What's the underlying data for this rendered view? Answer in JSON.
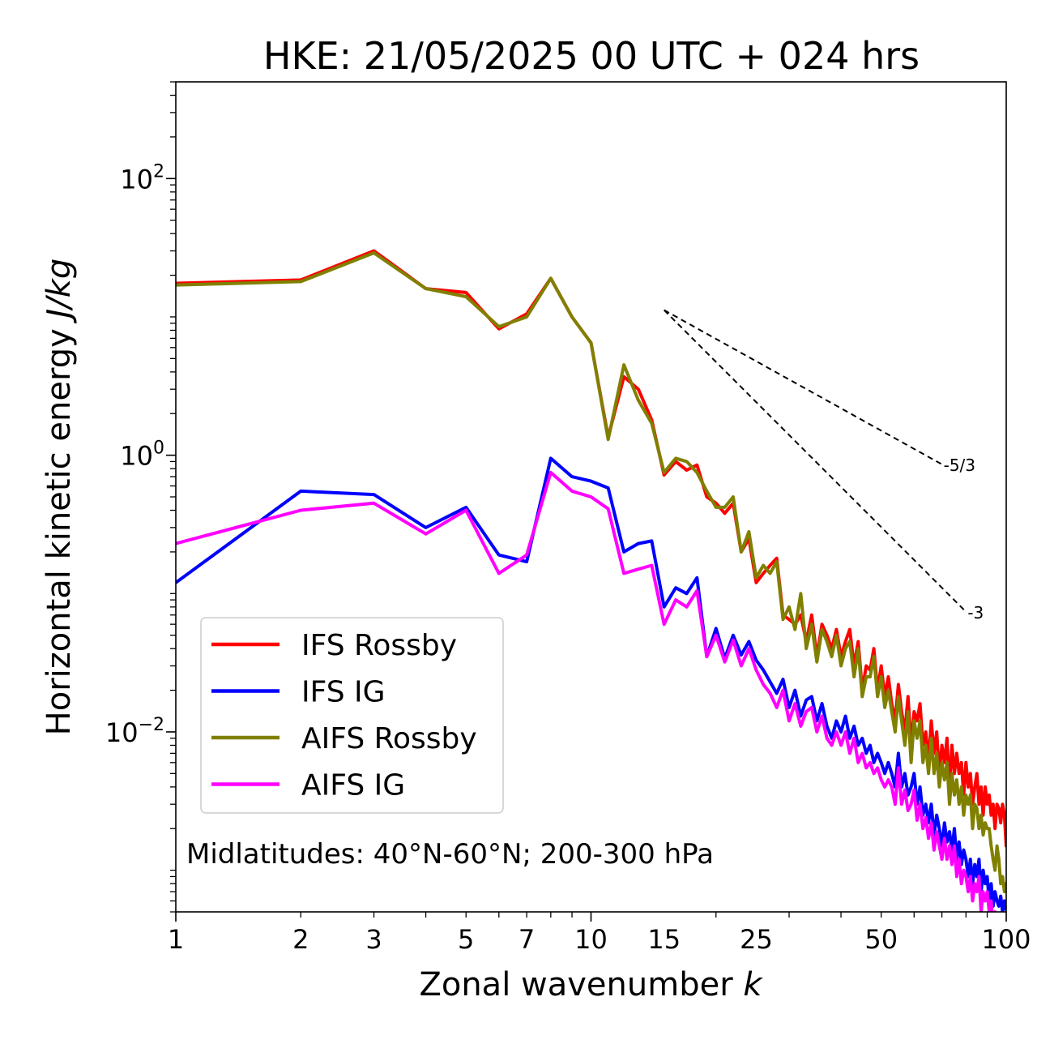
{
  "chart_data": {
    "type": "line",
    "title": "HKE: 21/05/2025 00 UTC + 024 hrs",
    "xlabel_text": "Zonal wavenumber ",
    "xlabel_var": "k",
    "ylabel_text": "Horizontal kinetic energy ",
    "ylabel_var": "J/kg",
    "x_scale": "log",
    "y_scale": "log",
    "xlim": [
      1,
      100
    ],
    "ylim": [
      0.0005,
      500
    ],
    "grid": false,
    "legend_position": "lower-left",
    "x_ticks": [
      1,
      2,
      3,
      5,
      7,
      10,
      15,
      25,
      50,
      100
    ],
    "x_tick_labels": [
      "1",
      "2",
      "3",
      "5",
      "7",
      "10",
      "15",
      "25",
      "50",
      "100"
    ],
    "y_ticks": [
      0.01,
      1,
      100
    ],
    "y_tick_labels": [
      {
        "base": "10",
        "exp": "−2"
      },
      {
        "base": "10",
        "exp": "0"
      },
      {
        "base": "10",
        "exp": "2"
      }
    ],
    "annotation": "Midlatitudes: 40°N-60°N; 200-300 hPa",
    "reference_slopes": [
      {
        "label": "-5/3",
        "slope": -1.6667,
        "x_start": 15,
        "y_start": 11.2,
        "x_end": 70
      },
      {
        "label": "-3",
        "slope": -3,
        "x_start": 15,
        "y_start": 11.2,
        "x_end": 80
      }
    ],
    "series": [
      {
        "name": "IFS Rossby",
        "color": "#ff0000",
        "y": [
          17.5,
          18.5,
          30,
          16,
          15,
          8.2,
          10.5,
          19,
          10,
          6.5,
          1.35,
          3.7,
          3.0,
          1.8,
          0.72,
          0.9,
          0.78,
          0.85,
          0.5,
          0.45,
          0.38,
          0.45,
          0.2,
          0.25,
          0.12,
          0.14,
          0.16,
          0.18,
          0.07,
          0.065,
          0.06,
          0.07,
          0.045,
          0.07,
          0.035,
          0.06,
          0.05,
          0.04,
          0.055,
          0.035,
          0.045,
          0.055,
          0.03,
          0.045,
          0.02,
          0.03,
          0.028,
          0.04,
          0.02,
          0.03,
          0.018,
          0.025,
          0.016,
          0.012,
          0.022,
          0.014,
          0.01,
          0.018,
          0.008,
          0.014,
          0.012,
          0.016,
          0.008,
          0.01,
          0.006,
          0.012,
          0.007,
          0.01,
          0.005,
          0.008,
          0.006,
          0.009,
          0.004,
          0.008,
          0.005,
          0.007,
          0.005,
          0.006,
          0.0035,
          0.006,
          0.004,
          0.005,
          0.003,
          0.004,
          0.005,
          0.003,
          0.004,
          0.0025,
          0.004,
          0.003,
          0.0035,
          0.0025,
          0.003,
          0.002,
          0.003,
          0.0028,
          0.0022,
          0.003,
          0.0025,
          0.0015
        ]
      },
      {
        "name": "IFS IG",
        "color": "#0000ff",
        "y": [
          0.12,
          0.55,
          0.52,
          0.3,
          0.42,
          0.19,
          0.17,
          0.95,
          0.7,
          0.65,
          0.58,
          0.2,
          0.23,
          0.24,
          0.08,
          0.11,
          0.1,
          0.13,
          0.035,
          0.056,
          0.034,
          0.05,
          0.036,
          0.045,
          0.033,
          0.028,
          0.023,
          0.019,
          0.024,
          0.015,
          0.02,
          0.013,
          0.017,
          0.018,
          0.012,
          0.016,
          0.011,
          0.009,
          0.012,
          0.01,
          0.013,
          0.009,
          0.011,
          0.008,
          0.009,
          0.007,
          0.008,
          0.006,
          0.007,
          0.006,
          0.005,
          0.006,
          0.005,
          0.004,
          0.007,
          0.004,
          0.005,
          0.0035,
          0.004,
          0.005,
          0.003,
          0.004,
          0.0025,
          0.003,
          0.0022,
          0.003,
          0.0018,
          0.0025,
          0.002,
          0.0015,
          0.0022,
          0.0016,
          0.0019,
          0.0014,
          0.002,
          0.0012,
          0.0016,
          0.0011,
          0.0014,
          0.0012,
          0.0009,
          0.0012,
          0.0008,
          0.0011,
          0.0009,
          0.0012,
          0.0007,
          0.001,
          0.0008,
          0.0009,
          0.0006,
          0.0008,
          0.00055,
          0.0007,
          0.0006,
          0.00055,
          0.00065,
          0.0005,
          0.0006,
          0.00052
        ]
      },
      {
        "name": "AIFS Rossby",
        "color": "#808000",
        "y": [
          17,
          18,
          29,
          16,
          14,
          8.5,
          10,
          19,
          10,
          6.5,
          1.3,
          4.5,
          2.5,
          1.7,
          0.75,
          0.95,
          0.9,
          0.75,
          0.55,
          0.42,
          0.42,
          0.5,
          0.2,
          0.28,
          0.13,
          0.16,
          0.14,
          0.17,
          0.065,
          0.08,
          0.055,
          0.1,
          0.04,
          0.06,
          0.032,
          0.055,
          0.045,
          0.035,
          0.05,
          0.03,
          0.04,
          0.045,
          0.025,
          0.04,
          0.018,
          0.025,
          0.025,
          0.035,
          0.018,
          0.025,
          0.015,
          0.02,
          0.014,
          0.01,
          0.018,
          0.012,
          0.008,
          0.014,
          0.006,
          0.012,
          0.009,
          0.012,
          0.006,
          0.008,
          0.005,
          0.009,
          0.005,
          0.007,
          0.004,
          0.006,
          0.0045,
          0.006,
          0.003,
          0.005,
          0.0035,
          0.0045,
          0.003,
          0.004,
          0.0025,
          0.0035,
          0.003,
          0.0035,
          0.002,
          0.003,
          0.0028,
          0.002,
          0.0025,
          0.0018,
          0.0022,
          0.002,
          0.002,
          0.0015,
          0.0012,
          0.001,
          0.0015,
          0.0012,
          0.0008,
          0.0009,
          0.0007,
          0.0008
        ]
      },
      {
        "name": "AIFS IG",
        "color": "#ff00ff",
        "y": [
          0.23,
          0.4,
          0.45,
          0.27,
          0.4,
          0.14,
          0.19,
          0.75,
          0.55,
          0.5,
          0.41,
          0.14,
          0.15,
          0.16,
          0.06,
          0.09,
          0.08,
          0.105,
          0.035,
          0.05,
          0.032,
          0.046,
          0.03,
          0.04,
          0.028,
          0.022,
          0.019,
          0.015,
          0.02,
          0.012,
          0.016,
          0.011,
          0.014,
          0.015,
          0.01,
          0.013,
          0.009,
          0.008,
          0.01,
          0.008,
          0.01,
          0.007,
          0.009,
          0.006,
          0.007,
          0.0055,
          0.006,
          0.005,
          0.0055,
          0.0045,
          0.004,
          0.0045,
          0.004,
          0.003,
          0.0055,
          0.003,
          0.0038,
          0.0027,
          0.003,
          0.0038,
          0.0023,
          0.003,
          0.002,
          0.0024,
          0.0017,
          0.0022,
          0.0014,
          0.0019,
          0.0015,
          0.0012,
          0.0017,
          0.0012,
          0.0015,
          0.0011,
          0.0015,
          0.0009,
          0.0012,
          0.0008,
          0.001,
          0.0009,
          0.0007,
          0.0009,
          0.0006,
          0.0008,
          0.0007,
          0.0009,
          0.0005,
          0.0007,
          0.0006,
          0.0007,
          0.0005,
          0.0006,
          0.0004,
          0.0005,
          0.00045,
          0.0004,
          0.00045,
          0.00038,
          0.0004,
          0.00035
        ]
      }
    ]
  }
}
